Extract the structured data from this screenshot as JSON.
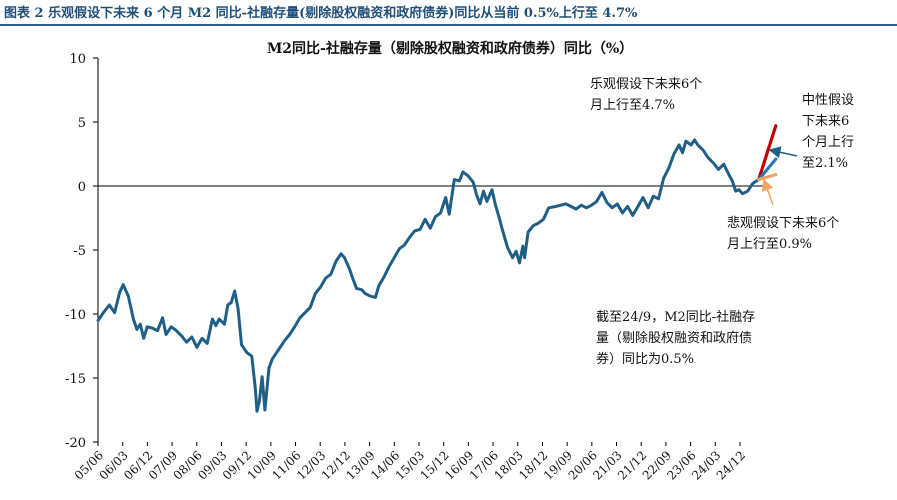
{
  "figure_caption": "图表 2   乐观假设下未来 6 个月  M2 同比-社融存量(剔除股权融资和政府债券)同比从当前  0.5%上行至  4.7%",
  "chart_data": {
    "type": "line",
    "title": "M2同比-社融存量（剔除股权融资和政府债券）同比（%）",
    "ylim": [
      -20,
      10
    ],
    "yticks": [
      "10",
      "5",
      "0",
      "-5",
      "-10",
      "-15",
      "-20"
    ],
    "ytick_values": [
      10,
      5,
      0,
      -5,
      -10,
      -15,
      -20
    ],
    "x_tick_labels": [
      "05/06",
      "06/03",
      "06/12",
      "07/09",
      "08/06",
      "09/03",
      "09/12",
      "10/09",
      "11/06",
      "12/03",
      "12/12",
      "13/09",
      "14/06",
      "15/03",
      "15/12",
      "16/09",
      "17/06",
      "18/03",
      "18/12",
      "19/09",
      "20/06",
      "21/03",
      "21/12",
      "22/09",
      "23/06",
      "24/03",
      "24/12"
    ],
    "x_start": 2005.417,
    "x_end": 2025.0,
    "series": [
      {
        "name": "M2同比-社融存量（剔除股权融资和政府债券）同比",
        "color": "#1f5f85",
        "points": [
          [
            2005.42,
            -10.5
          ],
          [
            2005.6,
            -9.8
          ],
          [
            2005.75,
            -9.3
          ],
          [
            2005.9,
            -9.9
          ],
          [
            2006.05,
            -8.3
          ],
          [
            2006.15,
            -7.7
          ],
          [
            2006.3,
            -8.6
          ],
          [
            2006.45,
            -10.4
          ],
          [
            2006.55,
            -11.2
          ],
          [
            2006.65,
            -10.8
          ],
          [
            2006.75,
            -11.9
          ],
          [
            2006.85,
            -11.0
          ],
          [
            2007.0,
            -11.1
          ],
          [
            2007.15,
            -11.3
          ],
          [
            2007.3,
            -10.3
          ],
          [
            2007.4,
            -11.6
          ],
          [
            2007.55,
            -11.0
          ],
          [
            2007.7,
            -11.3
          ],
          [
            2007.85,
            -11.7
          ],
          [
            2008.0,
            -12.2
          ],
          [
            2008.15,
            -11.8
          ],
          [
            2008.3,
            -12.6
          ],
          [
            2008.45,
            -11.9
          ],
          [
            2008.6,
            -12.3
          ],
          [
            2008.75,
            -10.4
          ],
          [
            2008.85,
            -10.9
          ],
          [
            2008.95,
            -10.4
          ],
          [
            2009.1,
            -10.8
          ],
          [
            2009.2,
            -9.3
          ],
          [
            2009.3,
            -9.1
          ],
          [
            2009.4,
            -8.2
          ],
          [
            2009.5,
            -9.6
          ],
          [
            2009.6,
            -12.4
          ],
          [
            2009.75,
            -13.0
          ],
          [
            2009.9,
            -13.3
          ],
          [
            2010.0,
            -15.8
          ],
          [
            2010.05,
            -17.6
          ],
          [
            2010.12,
            -16.8
          ],
          [
            2010.2,
            -14.9
          ],
          [
            2010.28,
            -17.5
          ],
          [
            2010.4,
            -14.2
          ],
          [
            2010.5,
            -13.5
          ],
          [
            2010.65,
            -12.9
          ],
          [
            2010.85,
            -12.1
          ],
          [
            2011.0,
            -11.6
          ],
          [
            2011.15,
            -11.0
          ],
          [
            2011.3,
            -10.3
          ],
          [
            2011.45,
            -9.9
          ],
          [
            2011.6,
            -9.5
          ],
          [
            2011.75,
            -8.4
          ],
          [
            2011.9,
            -7.9
          ],
          [
            2012.05,
            -7.2
          ],
          [
            2012.2,
            -6.9
          ],
          [
            2012.35,
            -5.9
          ],
          [
            2012.5,
            -5.3
          ],
          [
            2012.6,
            -5.6
          ],
          [
            2012.75,
            -6.5
          ],
          [
            2012.85,
            -7.3
          ],
          [
            2012.95,
            -8.0
          ],
          [
            2013.1,
            -8.1
          ],
          [
            2013.2,
            -8.4
          ],
          [
            2013.35,
            -8.6
          ],
          [
            2013.5,
            -8.7
          ],
          [
            2013.6,
            -7.8
          ],
          [
            2013.75,
            -7.1
          ],
          [
            2013.9,
            -6.3
          ],
          [
            2014.05,
            -5.6
          ],
          [
            2014.2,
            -4.9
          ],
          [
            2014.35,
            -4.6
          ],
          [
            2014.5,
            -4.0
          ],
          [
            2014.65,
            -3.5
          ],
          [
            2014.8,
            -3.4
          ],
          [
            2014.95,
            -2.6
          ],
          [
            2015.1,
            -3.3
          ],
          [
            2015.25,
            -2.4
          ],
          [
            2015.4,
            -2.1
          ],
          [
            2015.55,
            -0.9
          ],
          [
            2015.65,
            -2.2
          ],
          [
            2015.8,
            0.5
          ],
          [
            2015.95,
            0.4
          ],
          [
            2016.05,
            1.1
          ],
          [
            2016.2,
            0.8
          ],
          [
            2016.35,
            0.3
          ],
          [
            2016.45,
            -0.7
          ],
          [
            2016.55,
            -1.4
          ],
          [
            2016.65,
            -0.4
          ],
          [
            2016.75,
            -1.2
          ],
          [
            2016.9,
            -0.3
          ],
          [
            2017.0,
            -1.5
          ],
          [
            2017.1,
            -2.4
          ],
          [
            2017.2,
            -3.4
          ],
          [
            2017.35,
            -4.8
          ],
          [
            2017.5,
            -5.6
          ],
          [
            2017.6,
            -5.1
          ],
          [
            2017.7,
            -6.0
          ],
          [
            2017.8,
            -4.7
          ],
          [
            2017.85,
            -5.6
          ],
          [
            2017.95,
            -3.6
          ],
          [
            2018.1,
            -3.1
          ],
          [
            2018.25,
            -2.9
          ],
          [
            2018.4,
            -2.6
          ],
          [
            2018.55,
            -1.7
          ],
          [
            2018.75,
            -1.6
          ],
          [
            2018.9,
            -1.5
          ],
          [
            2019.05,
            -1.4
          ],
          [
            2019.2,
            -1.6
          ],
          [
            2019.35,
            -1.8
          ],
          [
            2019.5,
            -1.5
          ],
          [
            2019.65,
            -1.7
          ],
          [
            2019.8,
            -1.5
          ],
          [
            2019.95,
            -1.2
          ],
          [
            2020.1,
            -0.5
          ],
          [
            2020.25,
            -1.3
          ],
          [
            2020.4,
            -1.7
          ],
          [
            2020.55,
            -1.4
          ],
          [
            2020.7,
            -2.1
          ],
          [
            2020.85,
            -1.6
          ],
          [
            2021.0,
            -2.3
          ],
          [
            2021.15,
            -1.6
          ],
          [
            2021.3,
            -0.9
          ],
          [
            2021.45,
            -1.7
          ],
          [
            2021.6,
            -0.8
          ],
          [
            2021.75,
            -1.0
          ],
          [
            2021.9,
            0.6
          ],
          [
            2022.05,
            1.4
          ],
          [
            2022.2,
            2.5
          ],
          [
            2022.35,
            3.2
          ],
          [
            2022.45,
            2.6
          ],
          [
            2022.55,
            3.5
          ],
          [
            2022.7,
            3.2
          ],
          [
            2022.8,
            3.6
          ],
          [
            2022.9,
            3.2
          ],
          [
            2023.05,
            2.8
          ],
          [
            2023.2,
            2.2
          ],
          [
            2023.35,
            1.8
          ],
          [
            2023.5,
            1.3
          ],
          [
            2023.65,
            1.7
          ],
          [
            2023.8,
            0.9
          ],
          [
            2023.9,
            0.4
          ],
          [
            2024.0,
            -0.4
          ],
          [
            2024.1,
            -0.3
          ],
          [
            2024.2,
            -0.6
          ],
          [
            2024.35,
            -0.4
          ],
          [
            2024.5,
            0.2
          ],
          [
            2024.67,
            0.5
          ]
        ]
      },
      {
        "name": "乐观假设下未来6个月上行至4.7%",
        "color": "#c00000",
        "points": [
          [
            2024.67,
            0.5
          ],
          [
            2025.17,
            4.7
          ]
        ]
      },
      {
        "name": "中性假设下未来6个月上行至2.1%",
        "color": "#2e75b6",
        "points": [
          [
            2024.67,
            0.5
          ],
          [
            2025.17,
            2.1
          ]
        ]
      },
      {
        "name": "悲观假设下未来6个月上行至0.9%",
        "color": "#f4a460",
        "points": [
          [
            2024.67,
            0.5
          ],
          [
            2025.17,
            0.9
          ]
        ]
      }
    ],
    "annotations": {
      "optimistic": [
        "乐观假设下未来6个",
        "月上行至4.7%"
      ],
      "neutral": [
        "中性假设",
        "下未来6",
        "个月上行",
        "至2.1%"
      ],
      "pessimistic": [
        "悲观假设下未来6个",
        "月上行至0.9%"
      ],
      "current": [
        "截至24/9，M2同比-社融存",
        "量（剔除股权融资和政府债",
        "券）同比为0.5%"
      ]
    },
    "annotation_arrow_colors": {
      "neutral": "#1f5f85",
      "pessimistic": "#f4a460"
    }
  }
}
